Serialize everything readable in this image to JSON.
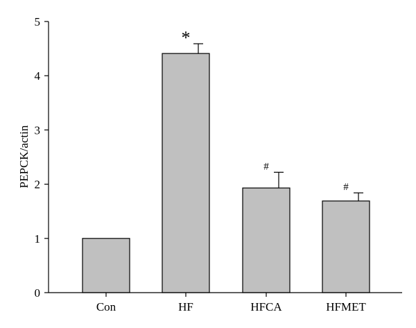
{
  "chart_data": {
    "type": "bar",
    "title": "",
    "xlabel": "",
    "ylabel": "PEPCK/actin",
    "ylim": [
      0,
      5
    ],
    "yticks": [
      "0",
      "1",
      "2",
      "3",
      "4",
      "5"
    ],
    "grid": false,
    "categories": [
      "Con",
      "HF",
      "HFCA",
      "HFMET"
    ],
    "values": [
      1.0,
      4.41,
      1.93,
      1.69
    ],
    "errors": [
      0,
      0.18,
      0.29,
      0.15
    ],
    "annotations": [
      "",
      "*",
      "#",
      "#"
    ],
    "colors": {
      "bar": "#c0c0c0",
      "outline": "#000000"
    }
  }
}
